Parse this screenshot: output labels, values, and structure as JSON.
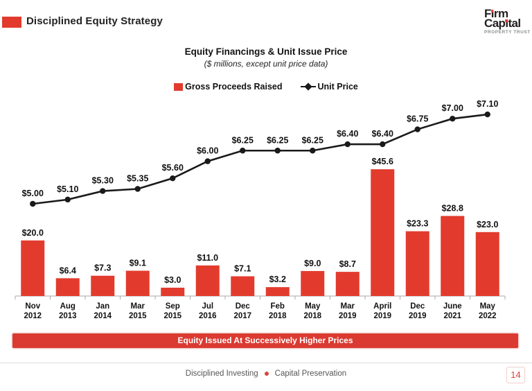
{
  "header": {
    "title": "Disciplined Equity Strategy",
    "logo": {
      "line1": "Firm",
      "line2": "Capital",
      "tagline": "PROPERTY TRUST"
    }
  },
  "chart_data": {
    "type": "bar",
    "combo_line_overlay": true,
    "title": "Equity Financings & Unit Issue Price",
    "subtitle": "($ millions, except unit price data)",
    "legend_position": "top",
    "grid": false,
    "categories": [
      "Nov 2012",
      "Aug 2013",
      "Jan 2014",
      "Mar 2015",
      "Sep 2015",
      "Jul 2016",
      "Dec 2017",
      "Feb 2018",
      "May 2018",
      "Mar 2019",
      "April 2019",
      "Dec 2019",
      "June 2021",
      "May 2022"
    ],
    "series": [
      {
        "name": "Gross Proceeds Raised",
        "type": "bar",
        "color": "#E23B2E",
        "values": [
          20.0,
          6.4,
          7.3,
          9.1,
          3.0,
          11.0,
          7.1,
          3.2,
          9.0,
          8.7,
          45.6,
          23.3,
          28.8,
          23.0
        ],
        "labels": [
          "$20.0",
          "$6.4",
          "$7.3",
          "$9.1",
          "$3.0",
          "$11.0",
          "$7.1",
          "$3.2",
          "$9.0",
          "$8.7",
          "$45.6",
          "$23.3",
          "$28.8",
          "$23.0"
        ]
      },
      {
        "name": "Unit Price",
        "type": "line",
        "color": "#1a1a1a",
        "values": [
          5.0,
          5.1,
          5.3,
          5.35,
          5.6,
          6.0,
          6.25,
          6.25,
          6.25,
          6.4,
          6.4,
          6.75,
          7.0,
          7.1
        ],
        "labels": [
          "$5.00",
          "$5.10",
          "$5.30",
          "$5.35",
          "$5.60",
          "$6.00",
          "$6.25",
          "$6.25",
          "$6.25",
          "$6.40",
          "$6.40",
          "$6.75",
          "$7.00",
          "$7.10"
        ]
      }
    ],
    "ylim_bar": [
      0,
      50
    ],
    "ylim_line": [
      5.0,
      7.5
    ]
  },
  "banner": {
    "text": "Equity Issued At Successively Higher Prices"
  },
  "footer": {
    "left": "Disciplined Investing",
    "right": "Capital Preservation",
    "page": "14"
  },
  "colors": {
    "accent_red": "#E23B2E",
    "banner_red": "#DA3A31",
    "line_black": "#1a1a1a",
    "footer_gray": "#565656"
  }
}
